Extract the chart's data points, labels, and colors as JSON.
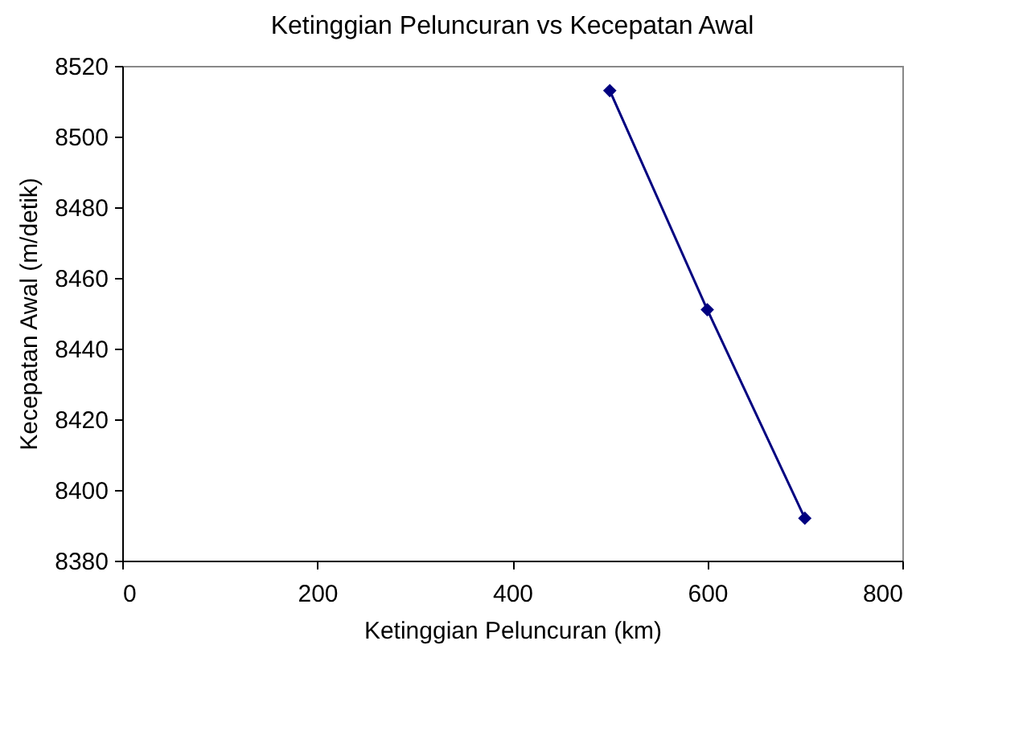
{
  "chart_data": {
    "type": "line",
    "title": "Ketinggian Peluncuran vs Kecepatan Awal",
    "xlabel": "Ketinggian Peluncuran (km)",
    "ylabel": "Kecepatan Awal (m/detik)",
    "x": [
      500,
      600,
      700
    ],
    "series": [
      {
        "color": "#000080",
        "values": [
          8513,
          8451,
          8392
        ]
      }
    ],
    "xlim": [
      0,
      800
    ],
    "xticks": [
      0,
      200,
      400,
      600,
      800
    ],
    "ylim": [
      8380,
      8520
    ],
    "yticks": [
      8380,
      8400,
      8420,
      8440,
      8460,
      8480,
      8500,
      8520
    ],
    "grid": false,
    "legend": false,
    "marker": "diamond",
    "line_style": "solid"
  }
}
